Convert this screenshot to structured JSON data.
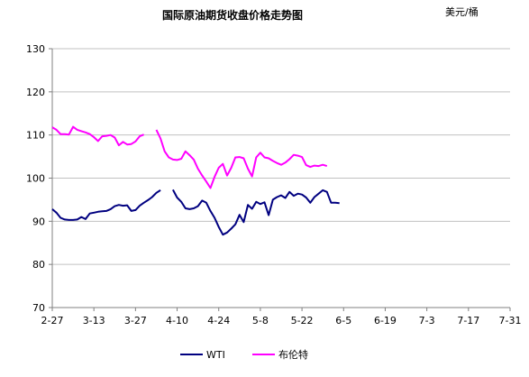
{
  "chart_data": {
    "type": "line",
    "title": "国际原油期货收盘价格走势图",
    "unit_label": "美元/桶",
    "xlabel": "",
    "ylabel": "",
    "ylim": [
      70,
      130
    ],
    "yticks": [
      70,
      80,
      90,
      100,
      110,
      120,
      130
    ],
    "grid": true,
    "legend_position": "bottom",
    "x_ticks": [
      "2-27",
      "3-13",
      "3-27",
      "4-10",
      "4-24",
      "5-8",
      "5-22",
      "6-5",
      "6-19",
      "7-3",
      "7-17",
      "7-31"
    ],
    "colors": {
      "WTI": "#000080",
      "布伦特": "#ff00ff",
      "grid": "#c0c0c0",
      "axis": "#808080"
    },
    "series": [
      {
        "name": "WTI",
        "segments": [
          [
            [
              0,
              92.8
            ],
            [
              1,
              92.0
            ],
            [
              2,
              90.8
            ],
            [
              3,
              90.4
            ],
            [
              4,
              90.3
            ],
            [
              5,
              90.3
            ],
            [
              6,
              90.4
            ],
            [
              7,
              91.0
            ],
            [
              8,
              90.5
            ],
            [
              9,
              91.8
            ],
            [
              10,
              92.0
            ],
            [
              11,
              92.2
            ],
            [
              12,
              92.3
            ],
            [
              13,
              92.4
            ],
            [
              14,
              92.8
            ],
            [
              15,
              93.5
            ],
            [
              16,
              93.8
            ],
            [
              17,
              93.6
            ],
            [
              18,
              93.7
            ],
            [
              19,
              92.4
            ],
            [
              20,
              92.6
            ],
            [
              21,
              93.6
            ],
            [
              22,
              94.3
            ],
            [
              23,
              94.9
            ],
            [
              24,
              95.6
            ],
            [
              25,
              96.6
            ],
            [
              26,
              97.2
            ]
          ],
          [
            [
              29,
              97.3
            ],
            [
              30,
              95.5
            ],
            [
              31,
              94.5
            ],
            [
              32,
              93.0
            ],
            [
              33,
              92.8
            ],
            [
              34,
              93.0
            ],
            [
              35,
              93.5
            ],
            [
              36,
              94.8
            ],
            [
              37,
              94.3
            ],
            [
              38,
              92.4
            ],
            [
              39,
              90.8
            ],
            [
              40,
              88.7
            ],
            [
              41,
              86.9
            ],
            [
              42,
              87.4
            ],
            [
              43,
              88.3
            ],
            [
              44,
              89.3
            ],
            [
              45,
              91.5
            ],
            [
              46,
              89.8
            ],
            [
              47,
              93.8
            ],
            [
              48,
              92.9
            ],
            [
              49,
              94.5
            ],
            [
              50,
              94.0
            ],
            [
              51,
              94.4
            ],
            [
              52,
              91.4
            ],
            [
              53,
              95.0
            ],
            [
              54,
              95.6
            ],
            [
              55,
              96.0
            ],
            [
              56,
              95.4
            ],
            [
              57,
              96.8
            ],
            [
              58,
              95.9
            ],
            [
              59,
              96.4
            ],
            [
              60,
              96.2
            ],
            [
              61,
              95.5
            ],
            [
              62,
              94.3
            ],
            [
              63,
              95.6
            ],
            [
              64,
              96.4
            ],
            [
              65,
              97.2
            ],
            [
              66,
              96.8
            ],
            [
              67,
              94.3
            ],
            [
              68,
              94.3
            ],
            [
              69,
              94.2
            ]
          ]
        ]
      },
      {
        "name": "布伦特",
        "segments": [
          [
            [
              0,
              111.8
            ],
            [
              1,
              111.2
            ],
            [
              2,
              110.2
            ],
            [
              3,
              110.2
            ],
            [
              4,
              110.1
            ],
            [
              5,
              111.9
            ],
            [
              6,
              111.2
            ],
            [
              7,
              110.9
            ],
            [
              8,
              110.6
            ],
            [
              9,
              110.2
            ],
            [
              10,
              109.5
            ],
            [
              11,
              108.6
            ],
            [
              12,
              109.7
            ],
            [
              13,
              109.8
            ],
            [
              14,
              110.0
            ],
            [
              15,
              109.4
            ],
            [
              16,
              107.6
            ],
            [
              17,
              108.4
            ],
            [
              18,
              107.8
            ],
            [
              19,
              107.9
            ],
            [
              20,
              108.5
            ],
            [
              21,
              109.7
            ],
            [
              22,
              110.1
            ]
          ],
          [
            [
              25,
              111.2
            ],
            [
              26,
              109.2
            ],
            [
              27,
              106.2
            ],
            [
              28,
              104.8
            ],
            [
              29,
              104.3
            ],
            [
              30,
              104.2
            ],
            [
              31,
              104.5
            ],
            [
              32,
              106.2
            ],
            [
              33,
              105.3
            ],
            [
              34,
              104.3
            ],
            [
              35,
              102.2
            ],
            [
              36,
              100.6
            ],
            [
              37,
              99.2
            ],
            [
              38,
              97.7
            ],
            [
              39,
              100.3
            ],
            [
              40,
              102.4
            ],
            [
              41,
              103.3
            ],
            [
              42,
              100.6
            ],
            [
              43,
              102.4
            ],
            [
              44,
              104.8
            ],
            [
              45,
              104.9
            ],
            [
              46,
              104.6
            ],
            [
              47,
              102.2
            ],
            [
              48,
              100.4
            ],
            [
              49,
              104.8
            ],
            [
              50,
              105.9
            ],
            [
              51,
              104.8
            ],
            [
              52,
              104.6
            ],
            [
              53,
              104.0
            ],
            [
              54,
              103.5
            ],
            [
              55,
              103.1
            ],
            [
              56,
              103.6
            ],
            [
              57,
              104.4
            ],
            [
              58,
              105.4
            ],
            [
              59,
              105.2
            ],
            [
              60,
              104.9
            ],
            [
              61,
              103.0
            ],
            [
              62,
              102.6
            ],
            [
              63,
              102.9
            ],
            [
              64,
              102.8
            ],
            [
              65,
              103.1
            ],
            [
              66,
              102.8
            ]
          ]
        ]
      }
    ]
  },
  "legend": [
    {
      "label": "WTI"
    },
    {
      "label": "布伦特"
    }
  ]
}
